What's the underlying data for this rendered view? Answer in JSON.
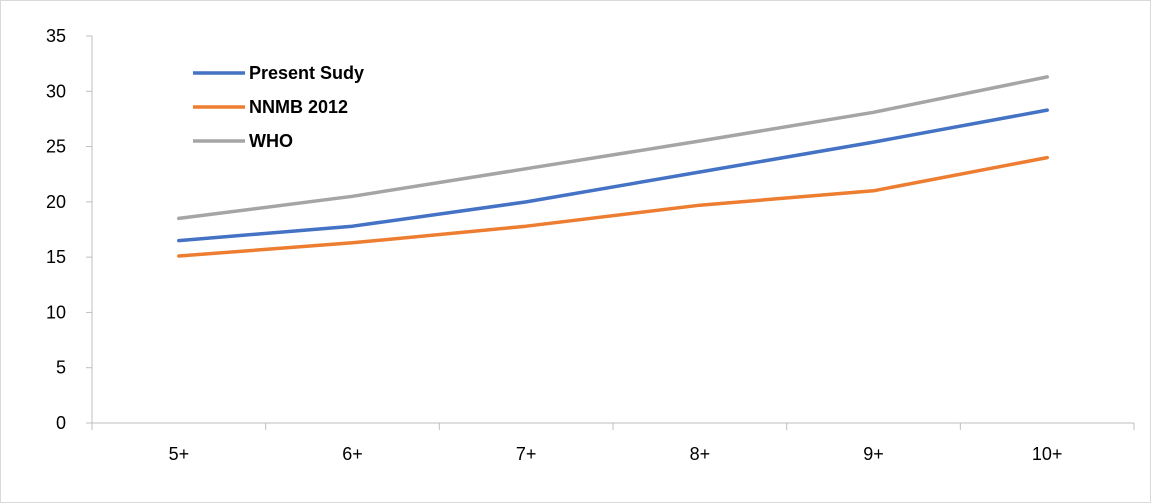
{
  "chart_data": {
    "type": "line",
    "categories": [
      "5+",
      "6+",
      "7+",
      "8+",
      "9+",
      "10+"
    ],
    "series": [
      {
        "name": "Present Sudy",
        "color": "#4472C4",
        "values": [
          16.5,
          17.8,
          20.0,
          22.7,
          25.4,
          28.3
        ]
      },
      {
        "name": "NNMB 2012",
        "color": "#ED7D31",
        "values": [
          15.1,
          16.3,
          17.8,
          19.7,
          21.0,
          24.0
        ]
      },
      {
        "name": "WHO",
        "color": "#A5A5A5",
        "values": [
          18.5,
          20.5,
          23.0,
          25.5,
          28.1,
          31.3
        ]
      }
    ],
    "ylim": [
      0,
      35
    ],
    "yticks": [
      0,
      5,
      10,
      15,
      20,
      25,
      30,
      35
    ],
    "grid": false,
    "legend_position": "top-left"
  }
}
